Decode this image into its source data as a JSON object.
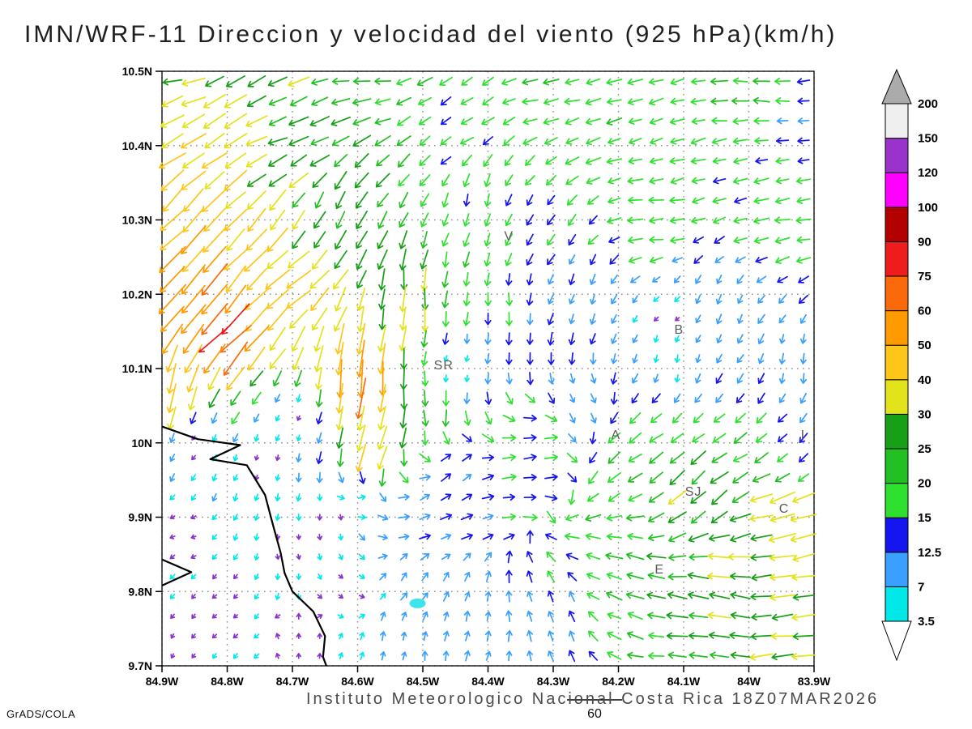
{
  "footer": {
    "caption": "Instituto Meteorologico Nacional Costa Rica 18Z07MAR2026",
    "credit": "GrADS/COLA"
  },
  "chart_data": {
    "type": "vector-field-map",
    "title": "IMN/WRF-11 Direccion y velocidad del viento (925 hPa)(km/h)",
    "units": "km/h",
    "level": "925 hPa",
    "grid": "dotted",
    "x_axis": {
      "range": [
        84.9,
        83.9
      ],
      "ticks": [
        {
          "v": 84.9,
          "label": "84.9W"
        },
        {
          "v": 84.8,
          "label": "84.8W"
        },
        {
          "v": 84.7,
          "label": "84.7W"
        },
        {
          "v": 84.6,
          "label": "84.6W"
        },
        {
          "v": 84.5,
          "label": "84.5W"
        },
        {
          "v": 84.4,
          "label": "84.4W"
        },
        {
          "v": 84.3,
          "label": "84.3W"
        },
        {
          "v": 84.2,
          "label": "84.2W"
        },
        {
          "v": 84.1,
          "label": "84.1W"
        },
        {
          "v": 84.0,
          "label": "84W"
        },
        {
          "v": 83.9,
          "label": "83.9W"
        }
      ]
    },
    "y_axis": {
      "range": [
        9.7,
        10.5
      ],
      "ticks": [
        {
          "v": 9.7,
          "label": "9.7N"
        },
        {
          "v": 9.8,
          "label": "9.8N"
        },
        {
          "v": 9.9,
          "label": "9.9N"
        },
        {
          "v": 10.0,
          "label": "10N"
        },
        {
          "v": 10.1,
          "label": "10.1N"
        },
        {
          "v": 10.2,
          "label": "10.2N"
        },
        {
          "v": 10.3,
          "label": "10.3N"
        },
        {
          "v": 10.4,
          "label": "10.4N"
        },
        {
          "v": 10.5,
          "label": "10.5N"
        }
      ]
    },
    "colorbar": {
      "levels": [
        3.5,
        7,
        12.5,
        15,
        20,
        25,
        30,
        40,
        50,
        60,
        75,
        90,
        100,
        120,
        150,
        200
      ],
      "colors": [
        "#ffffff",
        "#00e8e8",
        "#3aa0ff",
        "#1515f0",
        "#2fe12f",
        "#23c023",
        "#17a017",
        "#e3e31c",
        "#ffc61a",
        "#ff9a00",
        "#fb6a0a",
        "#ee1c1c",
        "#b30000",
        "#ff00ff",
        "#9933cc",
        "#efefef",
        "#ababab"
      ],
      "calm_vector_color": "#8a33cc"
    },
    "reference_vector": {
      "label": "60"
    },
    "stations": [
      [
        "V",
        84.368,
        10.273
      ],
      [
        "B",
        84.107,
        10.147
      ],
      [
        "SR",
        84.468,
        10.099
      ],
      [
        "A",
        84.204,
        10.005
      ],
      [
        "SJ",
        84.085,
        9.929
      ],
      [
        "C",
        83.946,
        9.906
      ],
      [
        "E",
        84.137,
        9.824
      ],
      [
        "I",
        83.917,
        10.005
      ]
    ],
    "coastline": {
      "main": [
        [
          84.9,
          10.022
        ],
        [
          84.845,
          10.005
        ],
        [
          84.78,
          9.997
        ],
        [
          84.826,
          9.978
        ],
        [
          84.77,
          9.97
        ],
        [
          84.742,
          9.93
        ],
        [
          84.73,
          9.89
        ],
        [
          84.718,
          9.852
        ],
        [
          84.712,
          9.825
        ],
        [
          84.7,
          9.8
        ],
        [
          84.668,
          9.773
        ],
        [
          84.65,
          9.74
        ],
        [
          84.653,
          9.712
        ],
        [
          84.648,
          9.7
        ]
      ],
      "spit": [
        [
          84.9,
          9.843
        ],
        [
          84.855,
          9.826
        ],
        [
          84.9,
          9.808
        ]
      ]
    },
    "water_body": {
      "lon": 84.508,
      "lat": 9.784
    },
    "flow_controls": [
      [
        84.88,
        10.49,
        195,
        30
      ],
      [
        84.6,
        10.49,
        185,
        22
      ],
      [
        84.3,
        10.48,
        190,
        18
      ],
      [
        84.0,
        10.48,
        180,
        20
      ],
      [
        83.91,
        10.42,
        185,
        12
      ],
      [
        84.88,
        10.42,
        212,
        40
      ],
      [
        84.7,
        10.43,
        200,
        28
      ],
      [
        84.45,
        10.42,
        212,
        16
      ],
      [
        84.2,
        10.42,
        195,
        18
      ],
      [
        84.87,
        10.3,
        225,
        50
      ],
      [
        84.86,
        10.2,
        232,
        58
      ],
      [
        84.8,
        10.15,
        227,
        70
      ],
      [
        84.88,
        10.07,
        255,
        42
      ],
      [
        84.72,
        10.22,
        220,
        45
      ],
      [
        84.65,
        10.3,
        240,
        26
      ],
      [
        84.6,
        10.08,
        265,
        60
      ],
      [
        84.58,
        9.99,
        255,
        40
      ],
      [
        84.52,
        10.18,
        268,
        34
      ],
      [
        84.48,
        10.05,
        272,
        22
      ],
      [
        84.42,
        10.32,
        255,
        15
      ],
      [
        84.38,
        10.18,
        270,
        14
      ],
      [
        84.45,
        9.96,
        40,
        12
      ],
      [
        84.33,
        9.99,
        10,
        16
      ],
      [
        84.25,
        10.05,
        300,
        10
      ],
      [
        84.3,
        10.28,
        235,
        14
      ],
      [
        84.25,
        10.2,
        250,
        11
      ],
      [
        84.15,
        10.3,
        185,
        18
      ],
      [
        83.95,
        10.3,
        190,
        18
      ],
      [
        84.05,
        10.18,
        250,
        10
      ],
      [
        84.12,
        10.12,
        265,
        7
      ],
      [
        83.92,
        10.1,
        260,
        10
      ],
      [
        83.92,
        9.98,
        230,
        14
      ],
      [
        84.18,
        10.0,
        215,
        20
      ],
      [
        84.08,
        9.93,
        220,
        28
      ],
      [
        83.94,
        9.9,
        195,
        38
      ],
      [
        83.92,
        9.8,
        185,
        32
      ],
      [
        84.05,
        9.8,
        170,
        30
      ],
      [
        84.18,
        9.82,
        160,
        22
      ],
      [
        84.3,
        9.76,
        110,
        12
      ],
      [
        84.42,
        9.74,
        75,
        10
      ],
      [
        84.52,
        9.8,
        55,
        9
      ],
      [
        84.5,
        9.92,
        25,
        12
      ],
      [
        84.6,
        9.93,
        20,
        6
      ],
      [
        84.85,
        10.0,
        230,
        2.2
      ],
      [
        84.75,
        9.97,
        260,
        2.0
      ],
      [
        84.87,
        9.88,
        200,
        2.3
      ],
      [
        84.7,
        9.86,
        280,
        2.0
      ],
      [
        84.8,
        9.78,
        220,
        2.4
      ],
      [
        84.68,
        9.73,
        90,
        2.2
      ],
      [
        84.88,
        9.72,
        240,
        2.0
      ],
      [
        84.62,
        9.8,
        320,
        2.5
      ],
      [
        84.12,
        10.16,
        210,
        2.5
      ],
      [
        84.45,
        10.1,
        250,
        3.0
      ],
      [
        84.64,
        9.9,
        270,
        3.0
      ],
      [
        84.7,
        10.03,
        250,
        2.5
      ],
      [
        84.55,
        9.72,
        80,
        8
      ],
      [
        84.47,
        9.7,
        85,
        9
      ]
    ],
    "vector_grid": {
      "nx": 31,
      "ny": 30
    }
  }
}
